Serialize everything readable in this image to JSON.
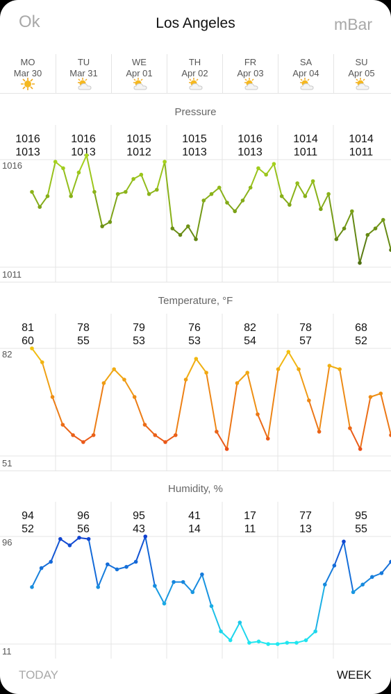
{
  "header": {
    "ok_label": "Ok",
    "city": "Los Angeles",
    "unit_label": "mBar"
  },
  "days": [
    {
      "dow": "MO",
      "date": "Mar 30",
      "icon": "sun-icon"
    },
    {
      "dow": "TU",
      "date": "Mar 31",
      "icon": "partly-cloudy-icon"
    },
    {
      "dow": "WE",
      "date": "Apr 01",
      "icon": "partly-cloudy-icon"
    },
    {
      "dow": "TH",
      "date": "Apr 02",
      "icon": "partly-cloudy-icon"
    },
    {
      "dow": "FR",
      "date": "Apr 03",
      "icon": "partly-cloudy-icon"
    },
    {
      "dow": "SA",
      "date": "Apr 04",
      "icon": "partly-cloudy-icon"
    },
    {
      "dow": "SU",
      "date": "Apr 05",
      "icon": "partly-cloudy-icon"
    }
  ],
  "tabs": {
    "today_label": "TODAY",
    "week_label": "WEEK"
  },
  "chart_data": [
    {
      "type": "line",
      "title": "Pressure",
      "ylim": [
        1011,
        1016
      ],
      "tick_labels": [
        "1016",
        "1011"
      ],
      "daily_high": [
        "1016",
        "1016",
        "1015",
        "1015",
        "1016",
        "1014",
        "1014"
      ],
      "daily_low": [
        "1013",
        "1013",
        "1012",
        "1013",
        "1013",
        "1011",
        "1011"
      ],
      "colors": {
        "low": "#4a6a10",
        "high": "#a8d41e"
      },
      "values": [
        1014.5,
        1013.8,
        1014.3,
        1015.9,
        1015.6,
        1014.3,
        1015.4,
        1016.2,
        1014.5,
        1012.9,
        1013.1,
        1014.4,
        1014.5,
        1015.1,
        1015.3,
        1014.4,
        1014.6,
        1015.9,
        1012.8,
        1012.5,
        1012.9,
        1012.3,
        1014.1,
        1014.4,
        1014.7,
        1014.0,
        1013.6,
        1014.1,
        1014.7,
        1015.6,
        1015.3,
        1015.8,
        1014.3,
        1013.9,
        1014.9,
        1014.3,
        1015.0,
        1013.7,
        1014.4,
        1012.3,
        1012.8,
        1013.6,
        1011.2,
        1012.5,
        1012.8,
        1013.2,
        1011.8
      ]
    },
    {
      "type": "line",
      "title": "Temperature, °F",
      "ylim": [
        51,
        82
      ],
      "tick_labels": [
        "82",
        "51"
      ],
      "daily_high": [
        "81",
        "78",
        "79",
        "76",
        "82",
        "78",
        "68"
      ],
      "daily_low": [
        "60",
        "55",
        "53",
        "53",
        "54",
        "57",
        "52"
      ],
      "colors": {
        "low": "#e8481a",
        "high": "#f2c410"
      },
      "values": [
        82,
        78,
        68,
        60,
        57,
        55,
        57,
        72,
        76,
        73,
        68,
        60,
        57,
        55,
        57,
        73,
        79,
        75,
        58,
        53,
        72,
        75,
        63,
        56,
        76,
        81,
        76,
        67,
        58,
        77,
        76,
        59,
        53,
        68,
        69,
        57
      ]
    },
    {
      "type": "line",
      "title": "Humidity, %",
      "ylim": [
        11,
        96
      ],
      "tick_labels": [
        "96",
        "11"
      ],
      "daily_high": [
        "94",
        "96",
        "95",
        "41",
        "17",
        "77",
        "95"
      ],
      "daily_low": [
        "52",
        "56",
        "43",
        "14",
        "11",
        "13",
        "55"
      ],
      "colors": {
        "low": "#20e8f0",
        "high": "#1040d0"
      },
      "values": [
        56,
        71,
        76,
        94,
        89,
        95,
        94,
        56,
        74,
        70,
        72,
        76,
        96,
        57,
        43,
        60,
        60,
        52,
        66,
        41,
        21,
        14,
        28,
        12,
        13,
        11,
        11,
        12,
        12,
        14,
        21,
        58,
        73,
        92,
        52,
        58,
        64,
        67,
        76
      ]
    }
  ]
}
